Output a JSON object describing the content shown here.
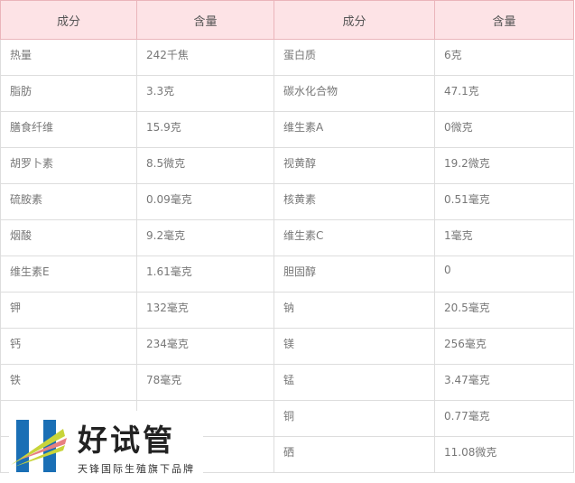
{
  "headers": [
    "成分",
    "含量",
    "成分",
    "含量"
  ],
  "rows": [
    [
      "热量",
      "242千焦",
      "蛋白质",
      "6克"
    ],
    [
      "脂肪",
      "3.3克",
      "碳水化合物",
      "47.1克"
    ],
    [
      "膳食纤维",
      "15.9克",
      "维生素A",
      "0微克"
    ],
    [
      "胡罗卜素",
      "8.5微克",
      "视黄醇",
      "19.2微克"
    ],
    [
      "硫胺素",
      "0.09毫克",
      "核黄素",
      "0.51毫克"
    ],
    [
      "烟酸",
      "9.2毫克",
      "维生素C",
      "1毫克"
    ],
    [
      "维生素E",
      "1.61毫克",
      "胆固醇",
      "0"
    ],
    [
      "钾",
      "132毫克",
      "钠",
      "20.5毫克"
    ],
    [
      "钙",
      "234毫克",
      "镁",
      "256毫克"
    ],
    [
      "铁",
      "78毫克",
      "锰",
      "3.47毫克"
    ],
    [
      "",
      "",
      "铜",
      "0.77毫克"
    ],
    [
      "",
      "",
      "硒",
      "11.08微克"
    ]
  ],
  "logo": {
    "title": "好试管",
    "subtitle": "天锋国际生殖旗下品牌",
    "colors": {
      "blue": "#1a6fb5",
      "yellow": "#c8d43a",
      "pink": "#e88080"
    }
  }
}
